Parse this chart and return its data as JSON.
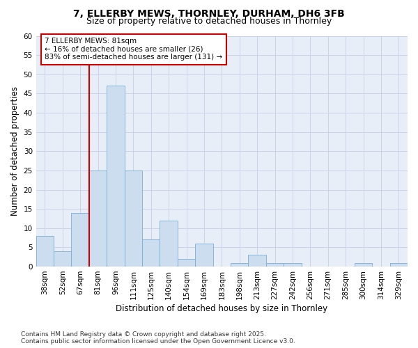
{
  "title1": "7, ELLERBY MEWS, THORNLEY, DURHAM, DH6 3FB",
  "title2": "Size of property relative to detached houses in Thornley",
  "xlabel": "Distribution of detached houses by size in Thornley",
  "ylabel": "Number of detached properties",
  "categories": [
    "38sqm",
    "52sqm",
    "67sqm",
    "81sqm",
    "96sqm",
    "111sqm",
    "125sqm",
    "140sqm",
    "154sqm",
    "169sqm",
    "183sqm",
    "198sqm",
    "213sqm",
    "227sqm",
    "242sqm",
    "256sqm",
    "271sqm",
    "285sqm",
    "300sqm",
    "314sqm",
    "329sqm"
  ],
  "values": [
    8,
    4,
    14,
    25,
    47,
    25,
    7,
    12,
    2,
    6,
    0,
    1,
    3,
    1,
    1,
    0,
    0,
    0,
    1,
    0,
    1
  ],
  "bar_color": "#ccddf0",
  "bar_edge_color": "#7aadd4",
  "vline_x_index": 3,
  "vline_color": "#cc0000",
  "annotation_line1": "7 ELLERBY MEWS: 81sqm",
  "annotation_line2": "← 16% of detached houses are smaller (26)",
  "annotation_line3": "83% of semi-detached houses are larger (131) →",
  "annotation_box_color": "#cc0000",
  "ylim": [
    0,
    60
  ],
  "yticks": [
    0,
    5,
    10,
    15,
    20,
    25,
    30,
    35,
    40,
    45,
    50,
    55,
    60
  ],
  "grid_color": "#c8d4e8",
  "bg_color": "#e8eef8",
  "footer": "Contains HM Land Registry data © Crown copyright and database right 2025.\nContains public sector information licensed under the Open Government Licence v3.0.",
  "title1_fontsize": 10,
  "title2_fontsize": 9,
  "xlabel_fontsize": 8.5,
  "ylabel_fontsize": 8.5,
  "tick_fontsize": 7.5,
  "annotation_fontsize": 7.5,
  "footer_fontsize": 6.5
}
